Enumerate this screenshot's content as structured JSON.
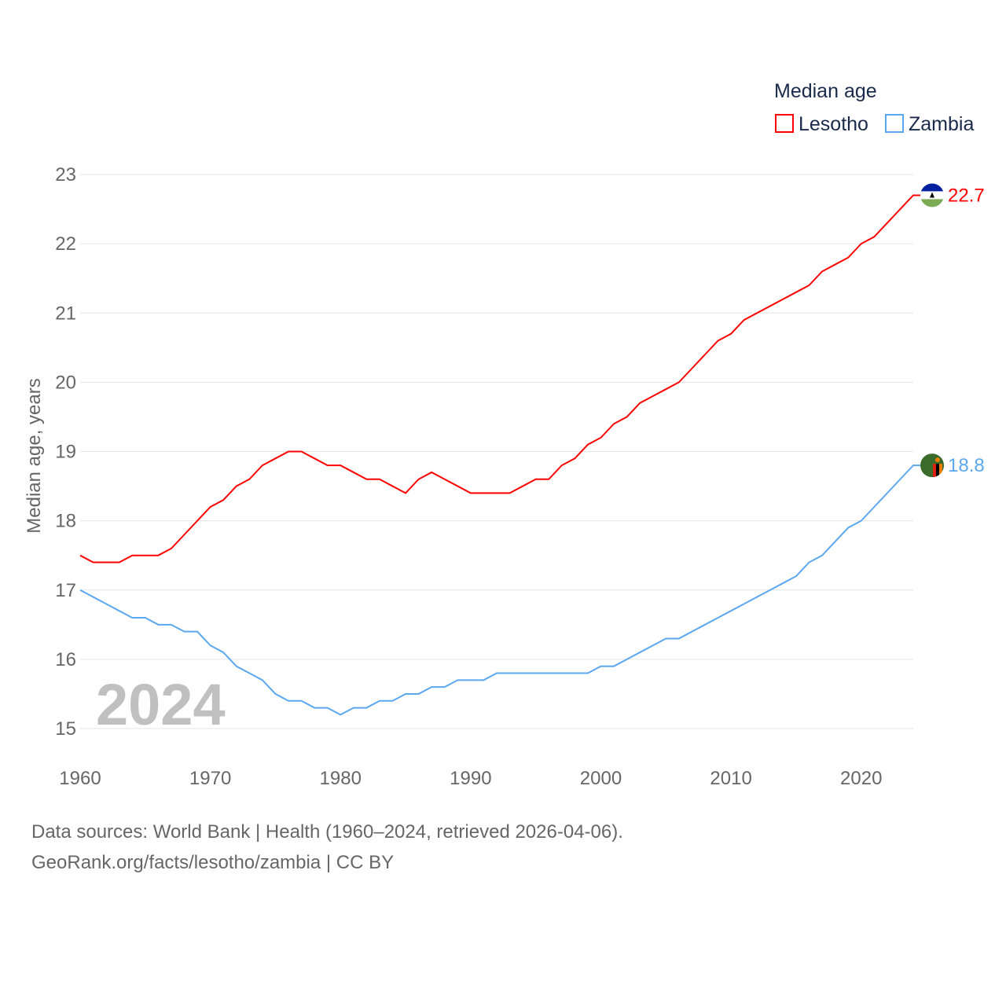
{
  "chart_data": {
    "type": "line",
    "title": "Median age",
    "xlabel": "",
    "ylabel": "Median age, years",
    "xlim": [
      1960,
      2024
    ],
    "ylim": [
      15,
      23
    ],
    "x_ticks": [
      "1960",
      "1970",
      "1980",
      "1990",
      "2000",
      "2010",
      "2020"
    ],
    "y_ticks": [
      "15",
      "16",
      "17",
      "18",
      "19",
      "20",
      "21",
      "22",
      "23"
    ],
    "grid": true,
    "legend_placement": "top-right",
    "year_label": "2024",
    "x": [
      1960,
      1961,
      1962,
      1963,
      1964,
      1965,
      1966,
      1967,
      1968,
      1969,
      1970,
      1971,
      1972,
      1973,
      1974,
      1975,
      1976,
      1977,
      1978,
      1979,
      1980,
      1981,
      1982,
      1983,
      1984,
      1985,
      1986,
      1987,
      1988,
      1989,
      1990,
      1991,
      1992,
      1993,
      1994,
      1995,
      1996,
      1997,
      1998,
      1999,
      2000,
      2001,
      2002,
      2003,
      2004,
      2005,
      2006,
      2007,
      2008,
      2009,
      2010,
      2011,
      2012,
      2013,
      2014,
      2015,
      2016,
      2017,
      2018,
      2019,
      2020,
      2021,
      2022,
      2023,
      2024
    ],
    "series": [
      {
        "name": "Lesotho",
        "color": "#ff0000",
        "end_label": "22.7",
        "values": [
          17.5,
          17.4,
          17.4,
          17.4,
          17.5,
          17.5,
          17.5,
          17.6,
          17.8,
          18.0,
          18.2,
          18.3,
          18.5,
          18.6,
          18.8,
          18.9,
          19.0,
          19.0,
          18.9,
          18.8,
          18.8,
          18.7,
          18.6,
          18.6,
          18.5,
          18.4,
          18.6,
          18.7,
          18.6,
          18.5,
          18.4,
          18.4,
          18.4,
          18.4,
          18.5,
          18.6,
          18.6,
          18.8,
          18.9,
          19.1,
          19.2,
          19.4,
          19.5,
          19.7,
          19.8,
          19.9,
          20.0,
          20.2,
          20.4,
          20.6,
          20.7,
          20.9,
          21.0,
          21.1,
          21.2,
          21.3,
          21.4,
          21.6,
          21.7,
          21.8,
          22.0,
          22.1,
          22.3,
          22.5,
          22.7
        ]
      },
      {
        "name": "Zambia",
        "color": "#5ca8f0",
        "end_label": "18.8",
        "values": [
          17.0,
          16.9,
          16.8,
          16.7,
          16.6,
          16.6,
          16.5,
          16.5,
          16.4,
          16.4,
          16.2,
          16.1,
          15.9,
          15.8,
          15.7,
          15.5,
          15.4,
          15.4,
          15.3,
          15.3,
          15.2,
          15.3,
          15.3,
          15.4,
          15.4,
          15.5,
          15.5,
          15.6,
          15.6,
          15.7,
          15.7,
          15.7,
          15.8,
          15.8,
          15.8,
          15.8,
          15.8,
          15.8,
          15.8,
          15.8,
          15.9,
          15.9,
          16.0,
          16.1,
          16.2,
          16.3,
          16.3,
          16.4,
          16.5,
          16.6,
          16.7,
          16.8,
          16.9,
          17.0,
          17.1,
          17.2,
          17.4,
          17.5,
          17.7,
          17.9,
          18.0,
          18.2,
          18.4,
          18.6,
          18.8
        ]
      }
    ]
  },
  "footer": {
    "line1": "Data sources: World Bank | Health (1960–2024, retrieved 2026-04-06).",
    "line2": "GeoRank.org/facts/lesotho/zambia | CC BY"
  }
}
